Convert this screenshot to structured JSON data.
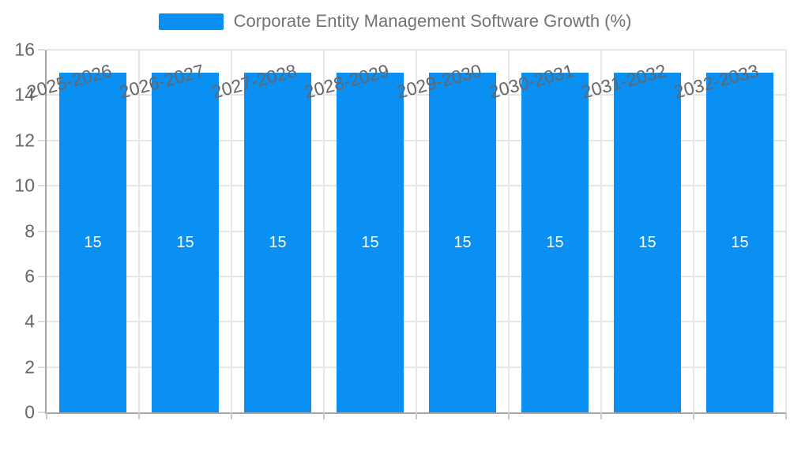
{
  "chart_data": {
    "type": "bar",
    "title": "Corporate Entity Management Software Growth (%)",
    "categories": [
      "2025-2026",
      "2026-2027",
      "2027-2028",
      "2028-2029",
      "2029-2030",
      "2030-2031",
      "2031-2032",
      "2032-2033"
    ],
    "values": [
      15,
      15,
      15,
      15,
      15,
      15,
      15,
      15
    ],
    "value_labels": [
      "15",
      "15",
      "15",
      "15",
      "15",
      "15",
      "15",
      "15"
    ],
    "ylim": [
      0,
      16
    ],
    "ytick_step": 2,
    "ytick_labels": [
      "0",
      "2",
      "4",
      "6",
      "8",
      "10",
      "12",
      "14",
      "16"
    ],
    "bar_color": "#0A8FF2",
    "value_label_color": "#FFFFFF",
    "legend_position": "top",
    "grid": true,
    "x_label_rotation_deg": -15
  }
}
